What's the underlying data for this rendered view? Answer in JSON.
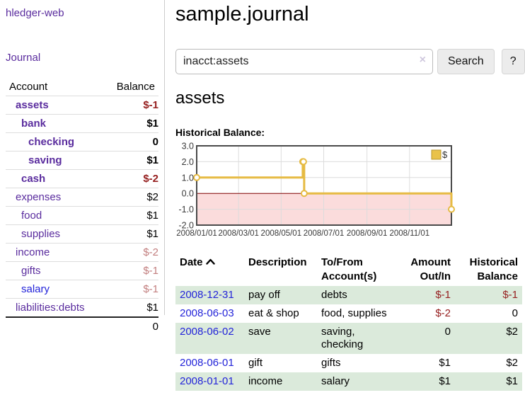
{
  "sidebar": {
    "app_title": "hledger-web",
    "nav": {
      "journal_label": "Journal"
    },
    "accounts_table": {
      "headers": {
        "account": "Account",
        "balance": "Balance"
      },
      "rows": [
        {
          "name": "assets",
          "balance": "$-1",
          "level": 1,
          "in_account": true,
          "balance_tone": "neg-strong"
        },
        {
          "name": "bank",
          "balance": "$1",
          "level": 2,
          "in_account": true,
          "balance_tone": ""
        },
        {
          "name": "checking",
          "balance": "0",
          "level": 3,
          "in_account": true,
          "balance_tone": ""
        },
        {
          "name": "saving",
          "balance": "$1",
          "level": 3,
          "in_account": true,
          "balance_tone": ""
        },
        {
          "name": "cash",
          "balance": "$-2",
          "level": 2,
          "in_account": true,
          "balance_tone": "neg-strong"
        },
        {
          "name": "expenses",
          "balance": "$2",
          "level": 1,
          "in_account": false,
          "balance_tone": ""
        },
        {
          "name": "food",
          "balance": "$1",
          "level": 2,
          "in_account": false,
          "balance_tone": ""
        },
        {
          "name": "supplies",
          "balance": "$1",
          "level": 2,
          "in_account": false,
          "balance_tone": ""
        },
        {
          "name": "income",
          "balance": "$-2",
          "level": 1,
          "in_account": false,
          "balance_tone": "neg-soft"
        },
        {
          "name": "gifts",
          "balance": "$-1",
          "level": 2,
          "in_account": false,
          "balance_tone": "neg-soft"
        },
        {
          "name": "salary",
          "balance": "$-1",
          "level": 2,
          "in_account": false,
          "balance_tone": "neg-soft",
          "link_tone": "blue"
        },
        {
          "name": "liabilities:debts",
          "balance": "$1",
          "level": 1,
          "in_account": false,
          "balance_tone": ""
        }
      ],
      "total": "0"
    }
  },
  "main": {
    "title": "sample.journal",
    "search": {
      "value": "inacct:assets",
      "clear_icon": "×",
      "search_button": "Search",
      "help_button": "?"
    },
    "account_heading": "assets",
    "chart_label": "Historical Balance:"
  },
  "chart_data": {
    "type": "line",
    "step": true,
    "title": "Historical Balance:",
    "legend": [
      "$"
    ],
    "legend_position": "top-right",
    "x_range": [
      "2008-01-01",
      "2008-12-31"
    ],
    "ylim": [
      -2.0,
      3.0
    ],
    "yticks": [
      "3.0",
      "2.0",
      "1.0",
      "0.0",
      "-1.0",
      "-2.0"
    ],
    "xticks": [
      "2008/01/01",
      "2008/03/01",
      "2008/05/01",
      "2008/07/01",
      "2008/09/01",
      "2008/11/01"
    ],
    "grid": true,
    "negative_region_shaded": true,
    "series": [
      {
        "name": "$",
        "points": [
          {
            "date": "2008-01-01",
            "value": 1
          },
          {
            "date": "2008-06-01",
            "value": 2
          },
          {
            "date": "2008-06-02",
            "value": 2
          },
          {
            "date": "2008-06-03",
            "value": 0
          },
          {
            "date": "2008-12-31",
            "value": -1
          }
        ]
      }
    ]
  },
  "transactions": {
    "headers": {
      "date": "Date",
      "description": "Description",
      "accounts": "To/From Account(s)",
      "amount": "Amount Out/In",
      "balance": "Historical Balance"
    },
    "sort": {
      "column": "date",
      "direction": "ascending",
      "icon": "chevron-up-icon"
    },
    "rows": [
      {
        "date": "2008-12-31",
        "description": "pay off",
        "accounts": "debts",
        "amount": "$-1",
        "amount_tone": "neg-strong",
        "balance": "$-1",
        "balance_tone": "neg-strong"
      },
      {
        "date": "2008-06-03",
        "description": "eat & shop",
        "accounts": "food, supplies",
        "amount": "$-2",
        "amount_tone": "neg-strong",
        "balance": "0",
        "balance_tone": ""
      },
      {
        "date": "2008-06-02",
        "description": "save",
        "accounts": "saving, checking",
        "amount": "0",
        "amount_tone": "",
        "balance": "$2",
        "balance_tone": ""
      },
      {
        "date": "2008-06-01",
        "description": "gift",
        "accounts": "gifts",
        "amount": "$1",
        "amount_tone": "",
        "balance": "$2",
        "balance_tone": ""
      },
      {
        "date": "2008-01-01",
        "description": "income",
        "accounts": "salary",
        "amount": "$1",
        "amount_tone": "",
        "balance": "$1",
        "balance_tone": ""
      }
    ]
  },
  "colors": {
    "link_purple": "#5a2c9e",
    "link_blue": "#2324d9",
    "negative_strong": "#962020",
    "negative_soft": "#c27e7e",
    "row_green": "#dbeadb",
    "button_bg": "#ececec",
    "chart_line": "#e6bb43",
    "chart_legend_fill": "#e9c24a",
    "chart_legend_border": "#b8962e",
    "chart_negative_fill": "#fbdcdc",
    "chart_zero_line": "#7f0000",
    "chart_border": "#4a4a4a",
    "chart_grid": "#dcdcdc"
  }
}
